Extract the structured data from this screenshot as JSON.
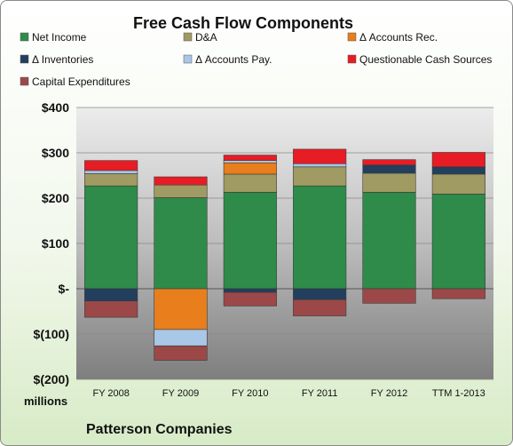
{
  "chart_data": {
    "type": "bar",
    "stacked": true,
    "title": "Free Cash Flow Components",
    "ylabel": "millions",
    "footer": "Patterson Companies",
    "categories": [
      "FY 2008",
      "FY 2009",
      "FY 2010",
      "FY 2011",
      "FY 2012",
      "TTM 1-2013"
    ],
    "ylim": [
      -200,
      400
    ],
    "yticks": [
      400,
      300,
      200,
      100,
      0,
      -100,
      -200
    ],
    "ytick_labels": [
      "$400",
      "$300",
      "$200",
      "$100",
      "$-",
      "$(100)",
      "$(200)"
    ],
    "grid": true,
    "legend_position": "top",
    "series": [
      {
        "name": "Net Income",
        "color": "#2e8b4a",
        "values": [
          227,
          201,
          213,
          227,
          213,
          209
        ]
      },
      {
        "name": "D&A",
        "color": "#a09a63",
        "values": [
          27,
          28,
          40,
          42,
          42,
          44
        ]
      },
      {
        "name": "Δ Accounts Rec.",
        "color": "#e87e1c",
        "values": [
          0,
          -90,
          25,
          0,
          0,
          0
        ]
      },
      {
        "name": "Δ Inventories",
        "color": "#223f5e",
        "values": [
          -27,
          0,
          -8,
          -24,
          18,
          16
        ]
      },
      {
        "name": "Δ Accounts Pay.",
        "color": "#a9c7e6",
        "values": [
          7,
          -36,
          5,
          7,
          0,
          0
        ]
      },
      {
        "name": "Questionable Cash Sources",
        "color": "#e81c24",
        "values": [
          22,
          18,
          12,
          32,
          12,
          32
        ]
      },
      {
        "name": "Capital Expenditures",
        "color": "#9c4848",
        "values": [
          -36,
          -32,
          -30,
          -36,
          -32,
          -22
        ]
      }
    ]
  }
}
